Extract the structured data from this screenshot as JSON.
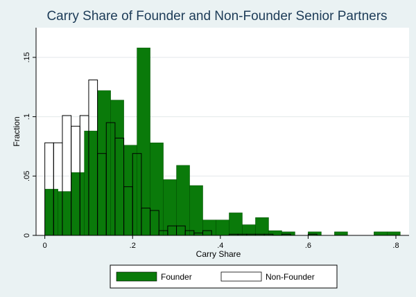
{
  "chart_data": {
    "type": "bar",
    "title": "Carry Share of Founder and Non-Founder Senior Partners",
    "xlabel": "Carry Share",
    "ylabel": "Fraction",
    "xlim": [
      -0.02,
      0.83
    ],
    "ylim": [
      0,
      0.175
    ],
    "x_ticks": [
      0,
      0.2,
      0.4,
      0.6,
      0.8
    ],
    "x_tick_labels": [
      "0",
      ".2",
      ".4",
      ".6",
      ".8"
    ],
    "y_ticks": [
      0,
      0.05,
      0.1,
      0.15
    ],
    "y_tick_labels": [
      "0",
      ".05",
      ".1",
      ".15"
    ],
    "grid": true,
    "legend_position": "bottom",
    "bin_width": 0.03,
    "series": [
      {
        "name": "Founder",
        "color": "#0a7a0a",
        "fill": true,
        "x": [
          0.0,
          0.03,
          0.06,
          0.09,
          0.12,
          0.15,
          0.18,
          0.21,
          0.24,
          0.27,
          0.3,
          0.33,
          0.36,
          0.39,
          0.42,
          0.45,
          0.48,
          0.51,
          0.54,
          0.57,
          0.6,
          0.63,
          0.66,
          0.69,
          0.72,
          0.75,
          0.78
        ],
        "values": [
          0.039,
          0.037,
          0.053,
          0.088,
          0.122,
          0.114,
          0.076,
          0.158,
          0.078,
          0.047,
          0.059,
          0.042,
          0.013,
          0.013,
          0.019,
          0.009,
          0.015,
          0.004,
          0.003,
          0.0,
          0.003,
          0.0,
          0.003,
          0.0,
          0.0,
          0.003,
          0.003
        ]
      },
      {
        "name": "Non-Founder",
        "color": "#000000",
        "fill": false,
        "x": [
          0.0,
          0.02,
          0.04,
          0.06,
          0.08,
          0.1,
          0.12,
          0.14,
          0.16,
          0.18,
          0.2,
          0.22,
          0.24,
          0.26,
          0.28,
          0.3,
          0.32,
          0.34,
          0.36,
          0.38,
          0.4,
          0.42,
          0.44,
          0.46,
          0.48,
          0.5,
          0.52,
          0.54,
          0.56,
          0.58,
          0.6
        ],
        "values": [
          0.078,
          0.078,
          0.101,
          0.092,
          0.101,
          0.131,
          0.069,
          0.095,
          0.082,
          0.041,
          0.069,
          0.023,
          0.021,
          0.004,
          0.008,
          0.008,
          0.004,
          0.002,
          0.004,
          0.0,
          0.0,
          0.001,
          0.001,
          0.001,
          0.001,
          0.001,
          0.0,
          0.001,
          0.0,
          0.0,
          0.001
        ],
        "bin_width": 0.02
      }
    ]
  }
}
